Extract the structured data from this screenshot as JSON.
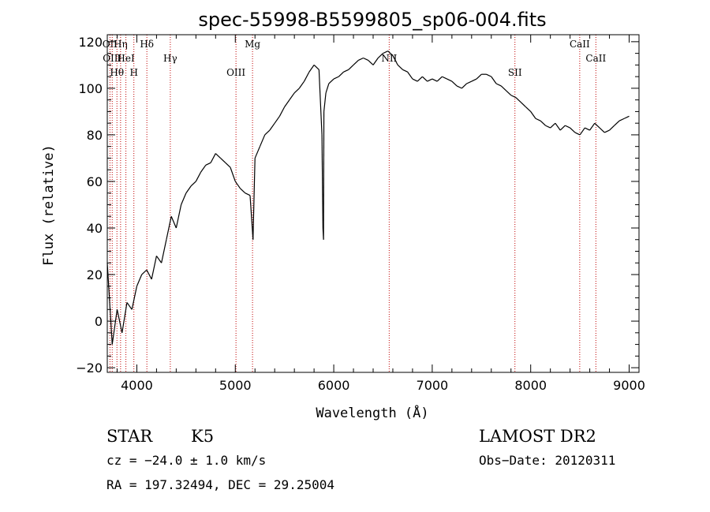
{
  "chart_data": {
    "type": "line",
    "title": "spec-55998-B5599805_sp06-004.fits",
    "xlabel": "Wavelength (Å)",
    "ylabel": "Flux (relative)",
    "xlim": [
      3700,
      9100
    ],
    "ylim": [
      -22,
      123
    ],
    "x_ticks": [
      4000,
      5000,
      6000,
      7000,
      8000,
      9000
    ],
    "y_ticks": [
      -20,
      0,
      20,
      40,
      60,
      80,
      100,
      120
    ],
    "grid": false,
    "line_color": "#000000",
    "marker_color": "#c00000",
    "series": [
      {
        "x": [
          3700,
          3750,
          3800,
          3850,
          3900,
          3950,
          4000,
          4050,
          4100,
          4150,
          4200,
          4250,
          4300,
          4350,
          4400,
          4450,
          4500,
          4550,
          4600,
          4650,
          4700,
          4750,
          4800,
          4850,
          4900,
          4950,
          5000,
          5050,
          5100,
          5150,
          5180,
          5200,
          5250,
          5300,
          5350,
          5400,
          5450,
          5500,
          5550,
          5600,
          5650,
          5700,
          5750,
          5800,
          5850,
          5880,
          5890,
          5896,
          5900,
          5920,
          5950,
          6000,
          6050,
          6100,
          6150,
          6200,
          6250,
          6300,
          6350,
          6400,
          6450,
          6500,
          6550,
          6600,
          6650,
          6700,
          6750,
          6800,
          6850,
          6900,
          6950,
          7000,
          7050,
          7100,
          7150,
          7200,
          7250,
          7300,
          7350,
          7400,
          7450,
          7500,
          7550,
          7600,
          7650,
          7700,
          7750,
          7800,
          7850,
          7900,
          7950,
          8000,
          8050,
          8100,
          8150,
          8200,
          8250,
          8300,
          8350,
          8400,
          8450,
          8500,
          8550,
          8600,
          8650,
          8700,
          8750,
          8800,
          8850,
          8900,
          8950,
          9000
        ],
        "y": [
          25,
          -10,
          5,
          -5,
          8,
          5,
          15,
          20,
          22,
          18,
          28,
          25,
          35,
          45,
          40,
          50,
          55,
          58,
          60,
          64,
          67,
          68,
          72,
          70,
          68,
          66,
          60,
          57,
          55,
          54,
          35,
          70,
          75,
          80,
          82,
          85,
          88,
          92,
          95,
          98,
          100,
          103,
          107,
          110,
          108,
          80,
          40,
          35,
          90,
          98,
          102,
          104,
          105,
          107,
          108,
          110,
          112,
          113,
          112,
          110,
          113,
          115,
          116,
          114,
          110,
          108,
          107,
          104,
          103,
          105,
          103,
          104,
          103,
          105,
          104,
          103,
          101,
          100,
          102,
          103,
          104,
          106,
          106,
          105,
          102,
          101,
          99,
          97,
          96,
          94,
          92,
          90,
          87,
          86,
          84,
          83,
          85,
          82,
          84,
          83,
          81,
          80,
          83,
          82,
          85,
          83,
          81,
          82,
          84,
          86,
          87,
          88
        ]
      }
    ],
    "markers": [
      {
        "wavelength": 3727,
        "label": "OII"
      },
      {
        "wavelength": 3750,
        "label": "OIII"
      },
      {
        "wavelength": 3798,
        "label": "Hθ"
      },
      {
        "wavelength": 3835,
        "label": "Hη"
      },
      {
        "wavelength": 3889,
        "label": "HeI"
      },
      {
        "wavelength": 3970,
        "label": "H"
      },
      {
        "wavelength": 4102,
        "label": "Hδ"
      },
      {
        "wavelength": 4340,
        "label": "Hγ"
      },
      {
        "wavelength": 5007,
        "label": "OIII"
      },
      {
        "wavelength": 5175,
        "label": "Mg"
      },
      {
        "wavelength": 6563,
        "label": "NII"
      },
      {
        "wavelength": 7840,
        "label": "SII"
      },
      {
        "wavelength": 8498,
        "label": "CaII"
      },
      {
        "wavelength": 8662,
        "label": "CaII"
      }
    ]
  },
  "info": {
    "object_class": "STAR",
    "subclass": "K5",
    "survey": "LAMOST DR2",
    "cz": "cz = −24.0 ± 1.0 km/s",
    "obs_date": "Obs−Date: 20120311",
    "radec": "RA = 197.32494, DEC =  29.25004"
  }
}
